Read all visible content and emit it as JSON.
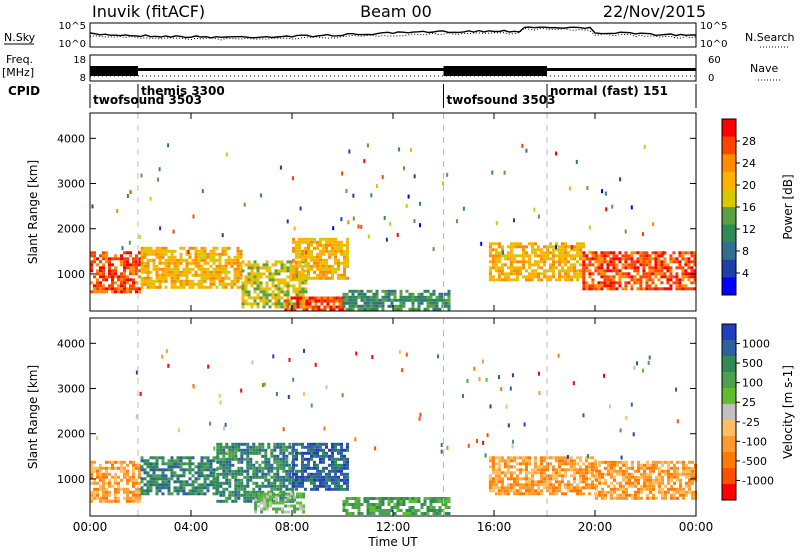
{
  "header": {
    "station": "Inuvik (fitACF)",
    "beam": "Beam 00",
    "date": "22/Nov/2015"
  },
  "status_panels": {
    "left_labels": {
      "nsky": "N.Sky",
      "freq": "Freq.",
      "freq_unit": "[MHz]",
      "cpid": "CPID"
    },
    "right_labels": {
      "nsearch": "N.Search",
      "nave": "Nave"
    },
    "noise_ticks_left": [
      "10^5",
      "10^0"
    ],
    "noise_ticks_right": [
      "10^5",
      "10^0"
    ],
    "freq_ticks": [
      "18",
      "8"
    ],
    "nave_ticks": [
      "60",
      "0"
    ],
    "cpid_entries": [
      {
        "label": "twofsound 3503",
        "start_hour": 0.0
      },
      {
        "label": "themis 3300",
        "start_hour": 1.9
      },
      {
        "label": "twofsound 3503",
        "start_hour": 14.0
      },
      {
        "label": "normal (fast) 151",
        "start_hour": 18.1
      }
    ]
  },
  "chart_data": [
    {
      "type": "heatmap",
      "panel": "power",
      "title": "",
      "xlabel": "",
      "ylabel": "Slant Range [km]",
      "colorbar_label": "Power [dB]",
      "colorbar_ticks": [
        "28",
        "24",
        "20",
        "16",
        "12",
        "8",
        "4"
      ],
      "colorbar_colors": [
        "#ff0000",
        "#ff4400",
        "#ff8c00",
        "#ffb000",
        "#d8c800",
        "#5aa040",
        "#2e8b57",
        "#2f6f8f",
        "#1e3fa8",
        "#0000ff"
      ],
      "ylim": [
        180,
        4560
      ],
      "xlim_hours": [
        0,
        24
      ],
      "y_ticks": [
        1000,
        2000,
        3000,
        4000
      ],
      "x_ticks": [
        "00:00",
        "04:00",
        "08:00",
        "12:00",
        "16:00",
        "20:00",
        "00:00"
      ],
      "regions": [
        {
          "h0": 0.0,
          "h1": 2.0,
          "r0": 600,
          "r1": 1500,
          "value_db": 26
        },
        {
          "h0": 2.0,
          "h1": 6.0,
          "r0": 700,
          "r1": 1600,
          "value_db": 22
        },
        {
          "h0": 6.0,
          "h1": 8.5,
          "r0": 250,
          "r1": 1300,
          "value_db": 18
        },
        {
          "h0": 7.7,
          "h1": 10.0,
          "r0": 200,
          "r1": 500,
          "value_db": 27
        },
        {
          "h0": 8.0,
          "h1": 10.2,
          "r0": 900,
          "r1": 1800,
          "value_db": 20
        },
        {
          "h0": 10.0,
          "h1": 14.2,
          "r0": 250,
          "r1": 650,
          "value_db": 12
        },
        {
          "h0": 15.8,
          "h1": 19.5,
          "r0": 900,
          "r1": 1700,
          "value_db": 22
        },
        {
          "h0": 19.5,
          "h1": 24.0,
          "r0": 700,
          "r1": 1500,
          "value_db": 27
        }
      ]
    },
    {
      "type": "heatmap",
      "panel": "velocity",
      "title": "",
      "xlabel": "Time UT",
      "ylabel": "Slant Range [km]",
      "colorbar_label": "Velocity [m s-1]",
      "colorbar_ticks": [
        "1000",
        "500",
        "100",
        "25",
        "-25",
        "-100",
        "-500",
        "-1000"
      ],
      "colorbar_colors": [
        "#1f3fbf",
        "#2e5fa0",
        "#2e8b57",
        "#4ca050",
        "#5fbe30",
        "#c0c0c0",
        "#ffbe60",
        "#ff9a2e",
        "#ff7a00",
        "#ff5000",
        "#ff0000"
      ],
      "ylim": [
        180,
        4560
      ],
      "xlim_hours": [
        0,
        24
      ],
      "y_ticks": [
        1000,
        2000,
        3000,
        4000
      ],
      "x_ticks": [
        "00:00",
        "04:00",
        "08:00",
        "12:00",
        "16:00",
        "20:00",
        "00:00"
      ],
      "regions": [
        {
          "h0": 0.0,
          "h1": 2.0,
          "r0": 500,
          "r1": 1400,
          "value_ms": -300
        },
        {
          "h0": 2.0,
          "h1": 5.0,
          "r0": 700,
          "r1": 1500,
          "value_ms": 150
        },
        {
          "h0": 5.0,
          "h1": 8.0,
          "r0": 500,
          "r1": 1800,
          "value_ms": 300
        },
        {
          "h0": 8.0,
          "h1": 10.2,
          "r0": 800,
          "r1": 1800,
          "value_ms": 800
        },
        {
          "h0": 6.5,
          "h1": 8.5,
          "r0": 250,
          "r1": 700,
          "value_ms": 0
        },
        {
          "h0": 10.0,
          "h1": 14.2,
          "r0": 250,
          "r1": 600,
          "value_ms": 50
        },
        {
          "h0": 15.8,
          "h1": 20.0,
          "r0": 700,
          "r1": 1500,
          "value_ms": -300
        },
        {
          "h0": 20.0,
          "h1": 24.0,
          "r0": 600,
          "r1": 1400,
          "value_ms": -120
        }
      ]
    }
  ]
}
